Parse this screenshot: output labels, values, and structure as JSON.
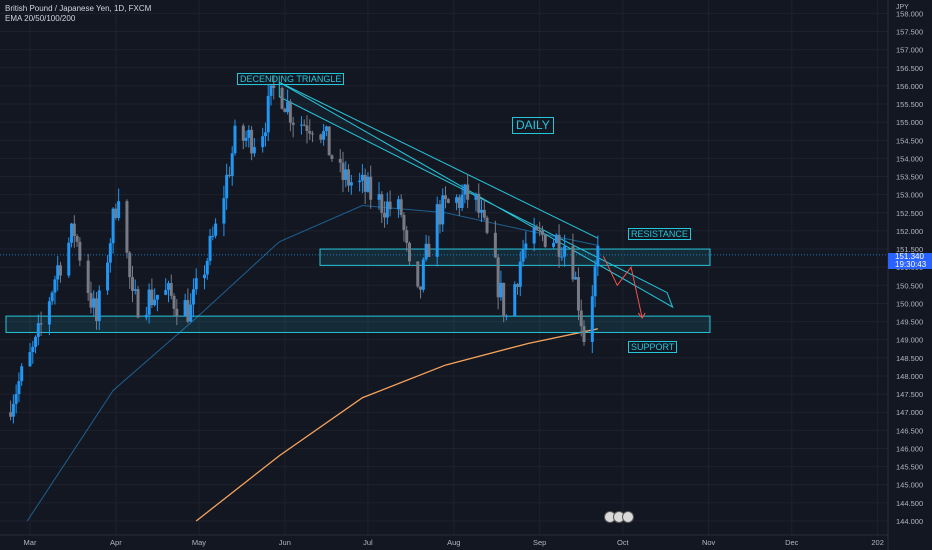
{
  "legend": {
    "title": "British Pound / Japanese Yen, 1D, FXCM",
    "indicator": "EMA 20/50/100/200"
  },
  "currency_label": "JPY",
  "last_price": {
    "value": "151.340",
    "countdown": "19:30:43",
    "color": "#2962ff"
  },
  "annotations": {
    "triangle": "DECENDING TRIANGLE",
    "resistance": "RESISTANCE",
    "support": "SUPPORT",
    "timeframe": "DAILY"
  },
  "colors": {
    "up": "#2196f3",
    "down": "#787b86",
    "annot": "#26c6da",
    "ema200": "#f7a35c",
    "ema50": "#1e6091",
    "projection": "#ef5350"
  },
  "chart_data": {
    "type": "candlestick",
    "yaxis": {
      "min": 144.0,
      "max": 158.0,
      "step": 0.5,
      "tick_labels": [
        "144.000",
        "144.500",
        "145.000",
        "145.500",
        "146.000",
        "146.500",
        "147.000",
        "147.500",
        "148.000",
        "148.500",
        "149.000",
        "149.500",
        "150.000",
        "150.500",
        "151.000",
        "151.500",
        "152.000",
        "152.500",
        "153.000",
        "153.500",
        "154.000",
        "154.500",
        "155.000",
        "155.500",
        "156.000",
        "156.500",
        "157.000",
        "157.500",
        "158.000"
      ]
    },
    "xaxis": {
      "tick_labels": [
        "Mar",
        "Apr",
        "May",
        "Jun",
        "Jul",
        "Aug",
        "Sep",
        "Oct",
        "Nov",
        "Dec",
        "202"
      ],
      "tick_days": [
        0,
        31,
        61,
        92,
        122,
        153,
        184,
        214,
        245,
        275,
        306
      ]
    },
    "price_path": [
      {
        "d": -9,
        "p": 147.0
      },
      {
        "d": 2,
        "p": 148.8
      },
      {
        "d": 10,
        "p": 151.0
      },
      {
        "d": 16,
        "p": 152.0
      },
      {
        "d": 24,
        "p": 149.5
      },
      {
        "d": 32,
        "p": 153.2
      },
      {
        "d": 37,
        "p": 150.0
      },
      {
        "d": 48,
        "p": 150.3
      },
      {
        "d": 58,
        "p": 149.8
      },
      {
        "d": 67,
        "p": 152.0
      },
      {
        "d": 74,
        "p": 154.5
      },
      {
        "d": 83,
        "p": 154.6
      },
      {
        "d": 89,
        "p": 156.1
      },
      {
        "d": 96,
        "p": 155.0
      },
      {
        "d": 104,
        "p": 155.0
      },
      {
        "d": 112,
        "p": 153.5
      },
      {
        "d": 120,
        "p": 153.2
      },
      {
        "d": 126,
        "p": 152.8
      },
      {
        "d": 134,
        "p": 152.5
      },
      {
        "d": 139,
        "p": 149.7
      },
      {
        "d": 146,
        "p": 152.4
      },
      {
        "d": 153,
        "p": 152.8
      },
      {
        "d": 160,
        "p": 153.0
      },
      {
        "d": 166,
        "p": 151.5
      },
      {
        "d": 172,
        "p": 149.6
      },
      {
        "d": 178,
        "p": 151.5
      },
      {
        "d": 186,
        "p": 151.9
      },
      {
        "d": 195,
        "p": 151.6
      },
      {
        "d": 200,
        "p": 149.1
      },
      {
        "d": 205,
        "p": 151.3
      }
    ],
    "resistance_zone": [
      151.05,
      151.5
    ],
    "support_zone": [
      149.2,
      149.65
    ],
    "ema200": [
      [
        60,
        144.0
      ],
      [
        90,
        145.8
      ],
      [
        120,
        147.4
      ],
      [
        150,
        148.3
      ],
      [
        180,
        148.9
      ],
      [
        205,
        149.3
      ]
    ],
    "ema50": [
      [
        -1,
        144.0
      ],
      [
        30,
        147.6
      ],
      [
        60,
        149.6
      ],
      [
        90,
        151.7
      ],
      [
        120,
        152.7
      ],
      [
        150,
        152.5
      ],
      [
        180,
        152.0
      ],
      [
        205,
        151.6
      ]
    ],
    "triangle_upper": [
      [
        90,
        156.1
      ],
      [
        205,
        151.8
      ]
    ],
    "triangle_lower": [
      [
        90,
        155.7
      ],
      [
        230,
        150.3
      ]
    ],
    "projection": [
      [
        207,
        151.3
      ],
      [
        212,
        150.5
      ],
      [
        217,
        151.0
      ],
      [
        221,
        149.6
      ]
    ]
  }
}
